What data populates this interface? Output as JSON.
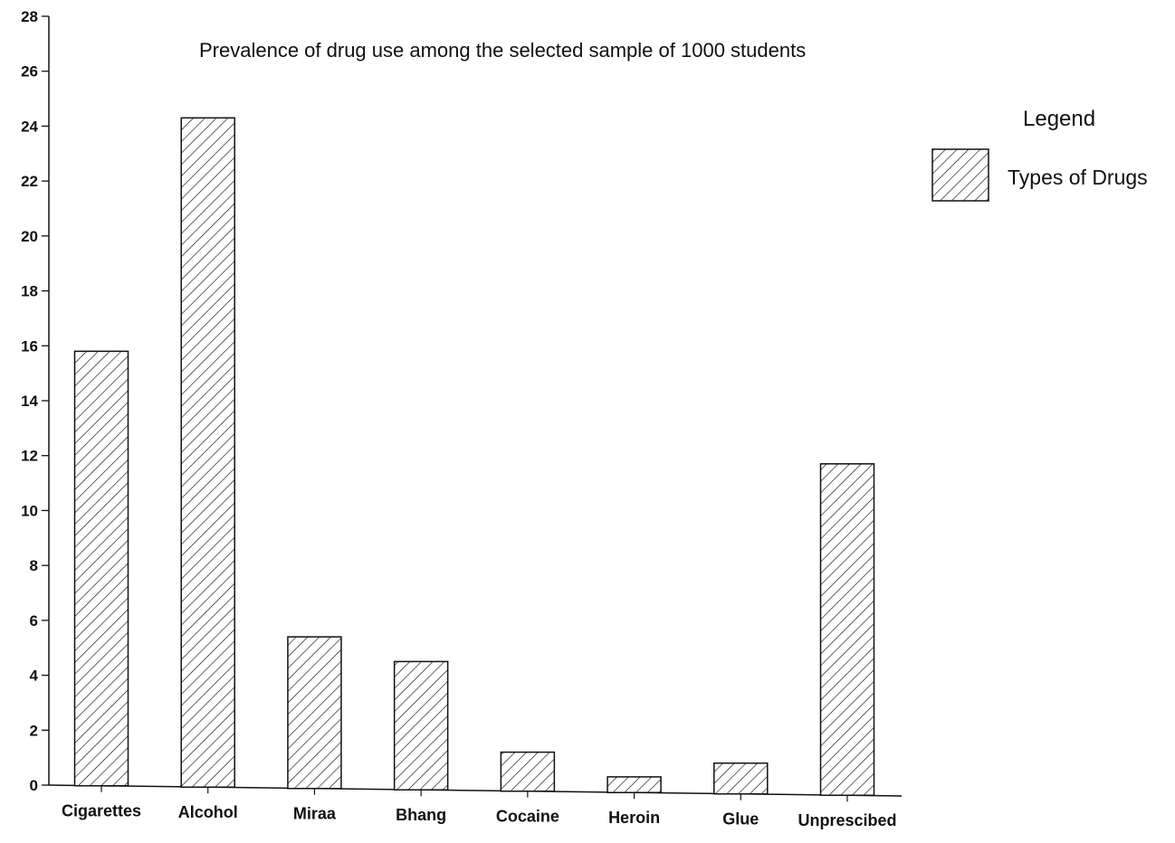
{
  "chart_data": {
    "type": "bar",
    "title": "Prevalence of drug use among the selected sample of 1000 students",
    "xlabel": "",
    "ylabel": "",
    "categories": [
      "Cigarettes",
      "Alcohol",
      "Miraa",
      "Bhang",
      "Cocaine",
      "Heroin",
      "Glue",
      "Unprescibed"
    ],
    "series": [
      {
        "name": "Types of Drugs",
        "values": [
          15.8,
          24.3,
          5.4,
          4.5,
          1.2,
          0.3,
          0.8,
          11.7
        ]
      }
    ],
    "ylim": [
      0,
      28
    ],
    "yticks": [
      "0",
      "2",
      "4",
      "6",
      "8",
      "10",
      "12",
      "14",
      "16",
      "18",
      "20",
      "22",
      "24",
      "26",
      "28"
    ],
    "grid": false,
    "bar_fill": "hatched",
    "legend": {
      "title": "Legend",
      "placement": "top-right"
    }
  },
  "colors": {
    "ink": "#111111",
    "background": "#ffffff"
  }
}
